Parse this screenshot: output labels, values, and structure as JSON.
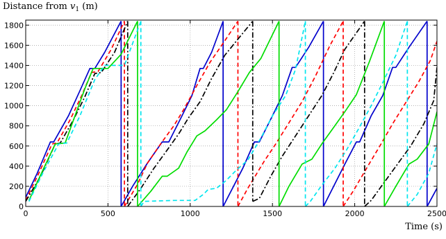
{
  "chart_data": {
    "type": "line",
    "ylabel_prefix": "Distance from ",
    "ylabel_var": "v",
    "ylabel_sub": "1",
    "ylabel_unit": " (m)",
    "xlabel": "Time (s)",
    "xlim": [
      0,
      2500
    ],
    "ylim": [
      0,
      1850
    ],
    "xticks": [
      0,
      500,
      1000,
      1500,
      2000,
      2500
    ],
    "yticks": [
      0,
      200,
      400,
      600,
      800,
      1000,
      1200,
      1400,
      1600,
      1800
    ],
    "grid": "dotted",
    "series": [
      {
        "color": "#0000cc",
        "dash": "solid",
        "segments": [
          [
            [
              0,
              90
            ],
            [
              70,
              330
            ],
            [
              150,
              640
            ],
            [
              170,
              640
            ],
            [
              260,
              900
            ],
            [
              330,
              1150
            ],
            [
              390,
              1370
            ],
            [
              420,
              1370
            ],
            [
              480,
              1530
            ],
            [
              580,
              1840
            ]
          ],
          [
            [
              580,
              0
            ],
            [
              650,
              200
            ],
            [
              740,
              430
            ],
            [
              830,
              640
            ],
            [
              870,
              640
            ],
            [
              950,
              900
            ],
            [
              1010,
              1100
            ],
            [
              1060,
              1370
            ],
            [
              1080,
              1370
            ],
            [
              1130,
              1530
            ],
            [
              1200,
              1840
            ]
          ],
          [
            [
              1200,
              0
            ],
            [
              1320,
              380
            ],
            [
              1390,
              640
            ],
            [
              1420,
              640
            ],
            [
              1500,
              900
            ],
            [
              1560,
              1100
            ],
            [
              1620,
              1380
            ],
            [
              1640,
              1380
            ],
            [
              1720,
              1580
            ],
            [
              1810,
              1840
            ]
          ],
          [
            [
              1810,
              0
            ],
            [
              1940,
              420
            ],
            [
              2010,
              640
            ],
            [
              2030,
              640
            ],
            [
              2100,
              900
            ],
            [
              2170,
              1100
            ],
            [
              2230,
              1380
            ],
            [
              2250,
              1380
            ],
            [
              2330,
              1580
            ],
            [
              2440,
              1840
            ]
          ],
          [
            [
              2440,
              0
            ],
            [
              2500,
              180
            ]
          ]
        ]
      },
      {
        "color": "#ff0000",
        "dash": "6,4",
        "segments": [
          [
            [
              0,
              60
            ],
            [
              80,
              330
            ],
            [
              160,
              620
            ],
            [
              190,
              630
            ],
            [
              270,
              860
            ],
            [
              340,
              1100
            ],
            [
              400,
              1330
            ],
            [
              440,
              1340
            ],
            [
              520,
              1560
            ],
            [
              600,
              1840
            ]
          ],
          [
            [
              600,
              0
            ],
            [
              680,
              220
            ],
            [
              740,
              430
            ],
            [
              820,
              620
            ],
            [
              900,
              800
            ],
            [
              960,
              960
            ],
            [
              1040,
              1200
            ],
            [
              1120,
              1430
            ],
            [
              1200,
              1620
            ],
            [
              1290,
              1840
            ]
          ],
          [
            [
              1290,
              0
            ],
            [
              1350,
              180
            ],
            [
              1450,
              450
            ],
            [
              1520,
              620
            ],
            [
              1600,
              830
            ],
            [
              1680,
              1040
            ],
            [
              1760,
              1290
            ],
            [
              1850,
              1600
            ],
            [
              1930,
              1840
            ]
          ],
          [
            [
              1930,
              0
            ],
            [
              1990,
              150
            ],
            [
              2080,
              400
            ],
            [
              2160,
              620
            ],
            [
              2230,
              820
            ],
            [
              2310,
              1030
            ],
            [
              2390,
              1240
            ],
            [
              2460,
              1450
            ],
            [
              2500,
              1640
            ]
          ]
        ]
      },
      {
        "color": "#000000",
        "dash": "8,3,2,3",
        "segments": [
          [
            [
              0,
              50
            ],
            [
              90,
              300
            ],
            [
              180,
              620
            ],
            [
              210,
              630
            ],
            [
              290,
              860
            ],
            [
              360,
              1090
            ],
            [
              420,
              1320
            ],
            [
              460,
              1330
            ],
            [
              540,
              1530
            ],
            [
              620,
              1840
            ]
          ],
          [
            [
              620,
              0
            ],
            [
              700,
              180
            ],
            [
              780,
              380
            ],
            [
              860,
              560
            ],
            [
              930,
              720
            ],
            [
              990,
              880
            ],
            [
              1060,
              1040
            ],
            [
              1130,
              1270
            ],
            [
              1210,
              1500
            ],
            [
              1300,
              1680
            ],
            [
              1380,
              1840
            ]
          ],
          [
            [
              1380,
              50
            ],
            [
              1420,
              80
            ],
            [
              1490,
              300
            ],
            [
              1560,
              500
            ],
            [
              1640,
              700
            ],
            [
              1720,
              900
            ],
            [
              1800,
              1100
            ],
            [
              1870,
              1320
            ],
            [
              1940,
              1560
            ],
            [
              2060,
              1840
            ]
          ],
          [
            [
              2060,
              0
            ],
            [
              2100,
              60
            ],
            [
              2180,
              240
            ],
            [
              2260,
              420
            ],
            [
              2340,
              600
            ],
            [
              2420,
              820
            ],
            [
              2480,
              1050
            ],
            [
              2500,
              1380
            ]
          ]
        ]
      },
      {
        "color": "#00dd00",
        "dash": "solid",
        "segments": [
          [
            [
              20,
              60
            ],
            [
              110,
              380
            ],
            [
              180,
              620
            ],
            [
              240,
              630
            ],
            [
              300,
              900
            ],
            [
              360,
              1170
            ],
            [
              410,
              1370
            ],
            [
              500,
              1370
            ],
            [
              580,
              1510
            ],
            [
              680,
              1840
            ]
          ],
          [
            [
              680,
              0
            ],
            [
              760,
              150
            ],
            [
              830,
              300
            ],
            [
              860,
              300
            ],
            [
              930,
              380
            ],
            [
              980,
              540
            ],
            [
              1040,
              700
            ],
            [
              1090,
              750
            ],
            [
              1160,
              860
            ],
            [
              1220,
              960
            ],
            [
              1290,
              1140
            ],
            [
              1360,
              1330
            ],
            [
              1430,
              1470
            ],
            [
              1540,
              1840
            ]
          ],
          [
            [
              1540,
              0
            ],
            [
              1600,
              200
            ],
            [
              1680,
              420
            ],
            [
              1740,
              470
            ],
            [
              1800,
              620
            ],
            [
              1870,
              780
            ],
            [
              1940,
              940
            ],
            [
              2010,
              1110
            ],
            [
              2090,
              1440
            ],
            [
              2180,
              1840
            ]
          ],
          [
            [
              2180,
              0
            ],
            [
              2250,
              200
            ],
            [
              2330,
              420
            ],
            [
              2380,
              470
            ],
            [
              2450,
              620
            ],
            [
              2500,
              940
            ]
          ]
        ]
      },
      {
        "color": "#00e5ee",
        "dash": "6,4",
        "segments": [
          [
            [
              20,
              50
            ],
            [
              110,
              350
            ],
            [
              200,
              620
            ],
            [
              250,
              630
            ],
            [
              330,
              900
            ],
            [
              420,
              1260
            ],
            [
              480,
              1400
            ],
            [
              600,
              1400
            ],
            [
              700,
              1840
            ]
          ],
          [
            [
              700,
              0
            ],
            [
              720,
              50
            ],
            [
              900,
              60
            ],
            [
              1030,
              60
            ],
            [
              1080,
              120
            ],
            [
              1110,
              170
            ],
            [
              1160,
              180
            ],
            [
              1220,
              260
            ],
            [
              1280,
              360
            ],
            [
              1350,
              460
            ],
            [
              1430,
              680
            ],
            [
              1500,
              900
            ],
            [
              1580,
              1100
            ],
            [
              1640,
              1360
            ],
            [
              1700,
              1840
            ]
          ],
          [
            [
              1700,
              0
            ],
            [
              1730,
              50
            ],
            [
              1800,
              210
            ],
            [
              1880,
              380
            ],
            [
              1950,
              560
            ],
            [
              2020,
              760
            ],
            [
              2100,
              1000
            ],
            [
              2170,
              1230
            ],
            [
              2250,
              1500
            ],
            [
              2320,
              1840
            ]
          ],
          [
            [
              2320,
              0
            ],
            [
              2380,
              120
            ],
            [
              2450,
              330
            ],
            [
              2500,
              620
            ]
          ]
        ]
      }
    ]
  }
}
